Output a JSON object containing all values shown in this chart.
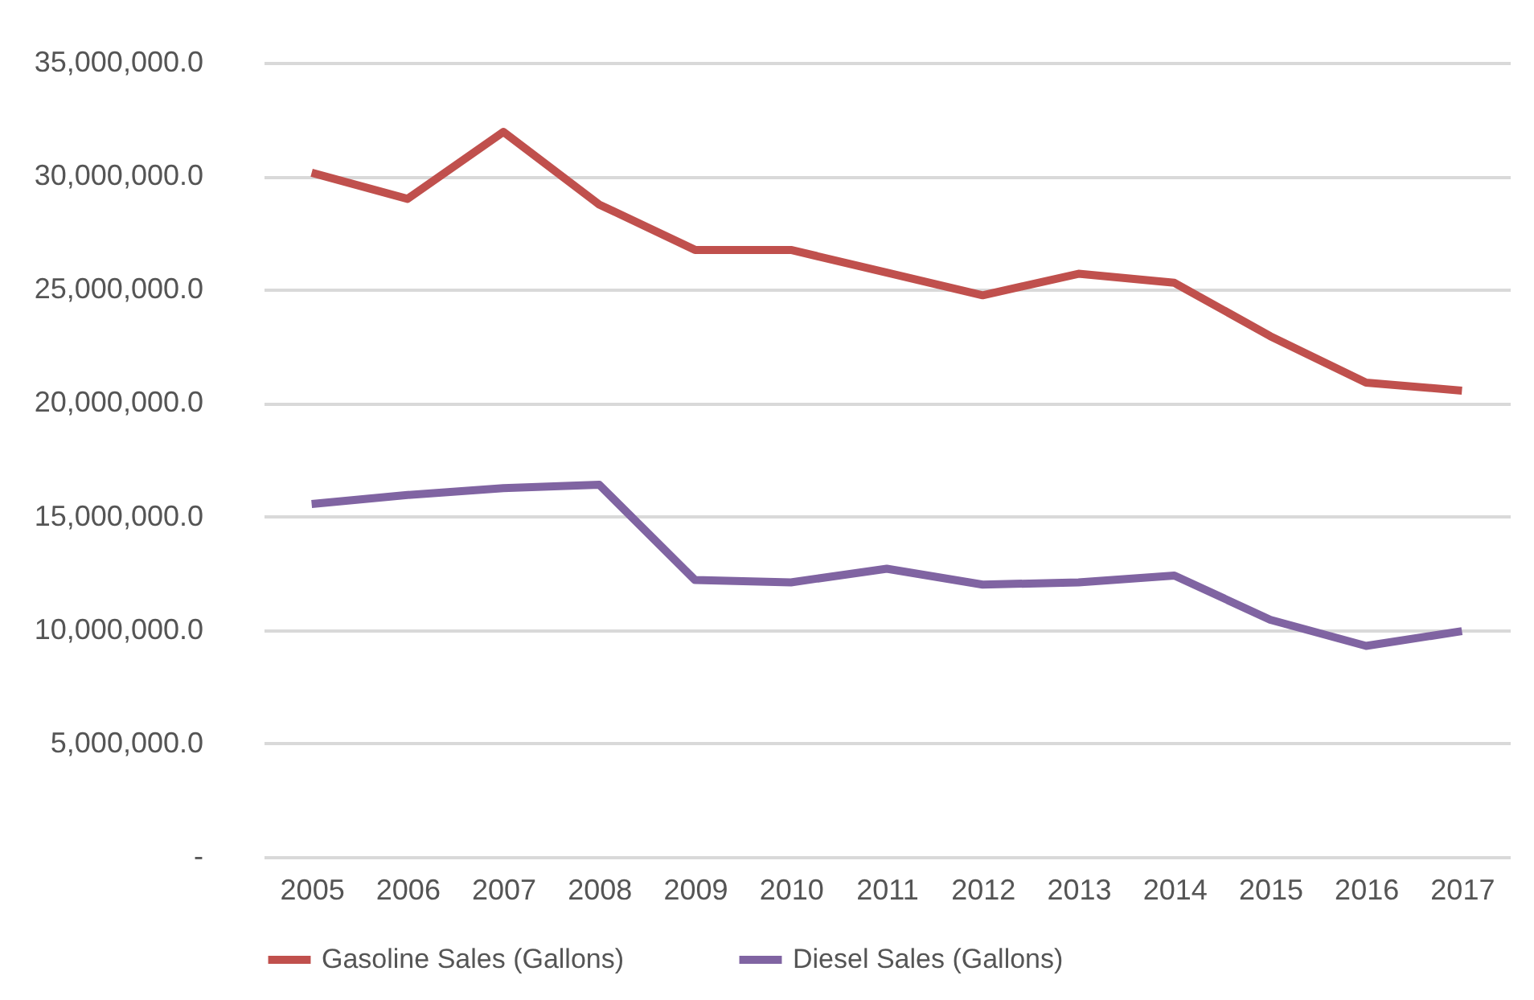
{
  "chart_data": {
    "type": "line",
    "categories": [
      "2005",
      "2006",
      "2007",
      "2008",
      "2009",
      "2010",
      "2011",
      "2012",
      "2013",
      "2014",
      "2015",
      "2016",
      "2017"
    ],
    "series": [
      {
        "name": "Gasoline Sales (Gallons)",
        "color": "#c0504d",
        "values": [
          30150000,
          29000000,
          31950000,
          28750000,
          26750000,
          26750000,
          25750000,
          24750000,
          25700000,
          25300000,
          22950000,
          20900000,
          20550000
        ]
      },
      {
        "name": "Diesel Sales (Gallons)",
        "color": "#8064a2",
        "values": [
          15550000,
          15950000,
          16250000,
          16400000,
          12200000,
          12100000,
          12700000,
          12000000,
          12100000,
          12400000,
          10450000,
          9300000,
          9950000
        ]
      }
    ],
    "ylim": [
      0,
      35000000
    ],
    "yticks": [
      {
        "value": 0,
        "label": "-"
      },
      {
        "value": 5000000,
        "label": "5,000,000.0"
      },
      {
        "value": 10000000,
        "label": "10,000,000.0"
      },
      {
        "value": 15000000,
        "label": "15,000,000.0"
      },
      {
        "value": 20000000,
        "label": "20,000,000.0"
      },
      {
        "value": 25000000,
        "label": "25,000,000.0"
      },
      {
        "value": 30000000,
        "label": "30,000,000.0"
      },
      {
        "value": 35000000,
        "label": "35,000,000.0"
      }
    ],
    "grid": "y",
    "legend": "bottom",
    "marker": "none",
    "line_style": "solid"
  }
}
